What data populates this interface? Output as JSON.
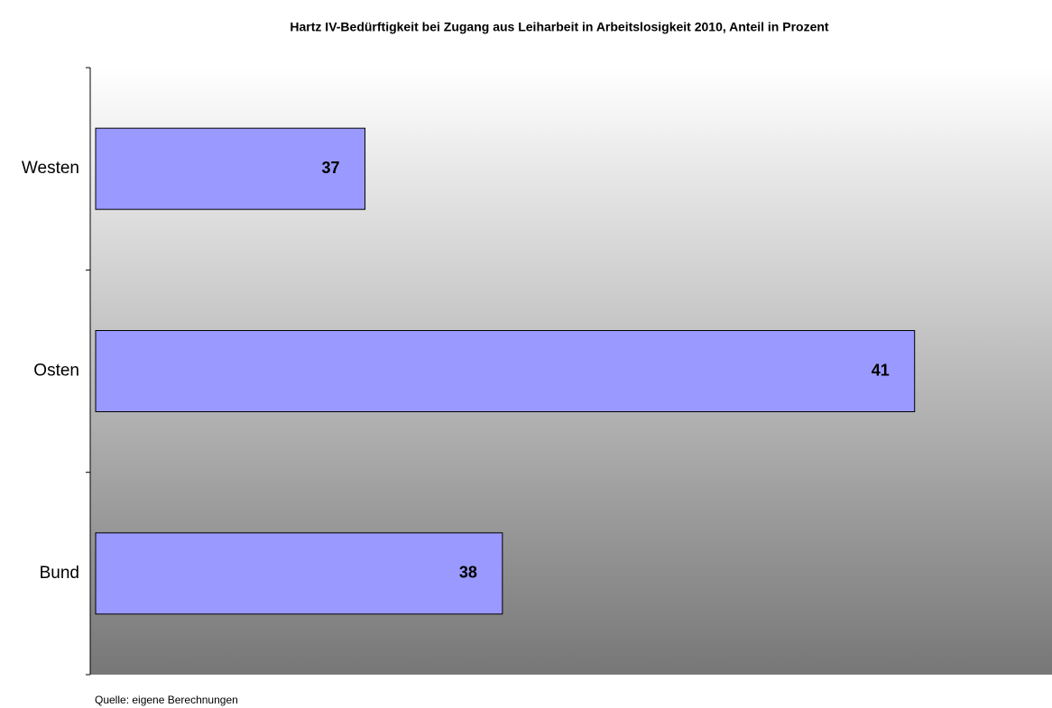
{
  "chart_data": {
    "type": "barh",
    "title": "Hartz IV-Bedürftigkeit bei Zugang aus Leiharbeit in Arbeitslosigkeit 2010, Anteil in Prozent",
    "categories": [
      "Westen",
      "Osten",
      "Bund"
    ],
    "values": [
      37,
      41,
      38
    ],
    "color": "#9999ff",
    "xlim": [
      35,
      42
    ],
    "source": "Quelle: eigene Berechnungen"
  }
}
